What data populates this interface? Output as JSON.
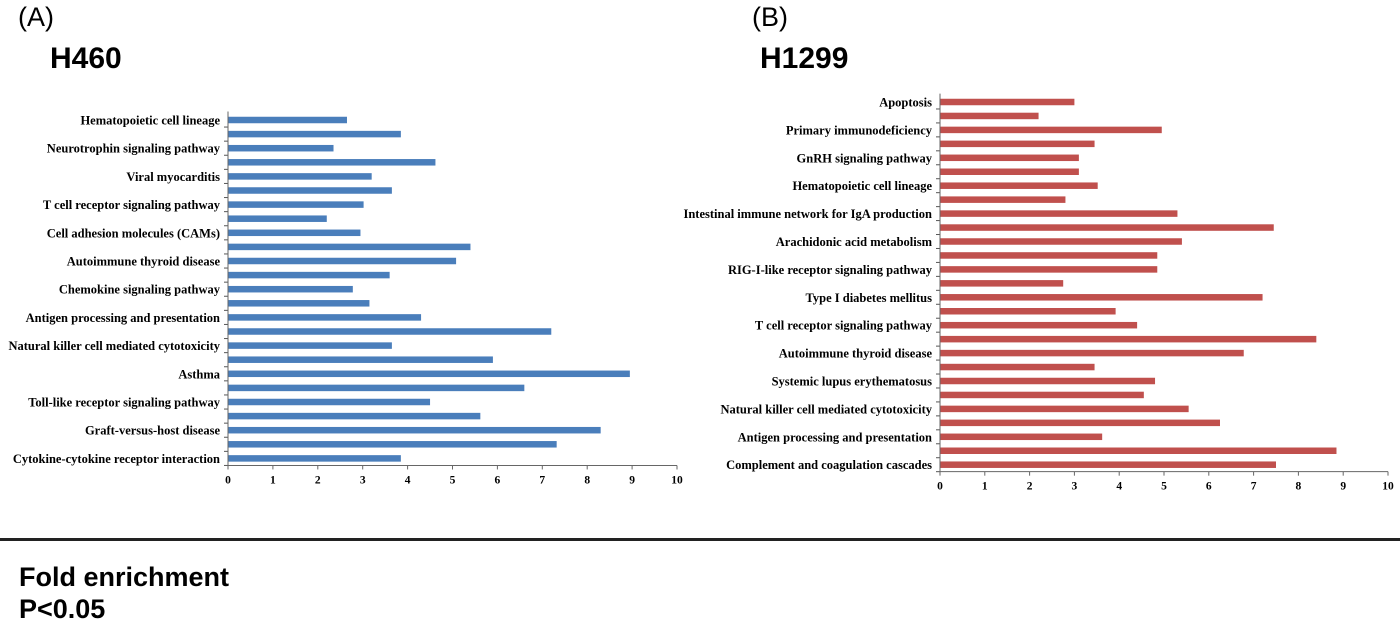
{
  "panels": [
    {
      "letter": "(A)",
      "title": "H460"
    },
    {
      "letter": "(B)",
      "title": "H1299"
    }
  ],
  "footer": {
    "line1": "Fold enrichment",
    "line2": "P<0.05"
  },
  "chart_data": [
    {
      "type": "bar",
      "orientation": "horizontal",
      "title": "H460",
      "xlim": [
        0,
        10
      ],
      "xticks": [
        0,
        1,
        2,
        3,
        4,
        5,
        6,
        7,
        8,
        9,
        10
      ],
      "grid": false,
      "color": "#4a7ebb",
      "categories": [
        "Hematopoietic cell lineage",
        "",
        "Neurotrophin signaling pathway",
        "",
        "Viral myocarditis",
        "",
        "T cell receptor signaling pathway",
        "",
        "Cell adhesion molecules (CAMs)",
        "",
        "Autoimmune thyroid disease",
        "",
        "Chemokine signaling pathway",
        "",
        "Antigen processing and presentation",
        "",
        "Natural killer cell mediated cytotoxicity",
        "",
        "Asthma",
        "",
        "Toll-like receptor signaling pathway",
        "",
        "Graft-versus-host disease",
        "",
        "Cytokine-cytokine receptor interaction"
      ],
      "values": [
        2.65,
        3.85,
        2.35,
        4.62,
        3.2,
        3.65,
        3.02,
        2.2,
        2.95,
        5.4,
        5.08,
        3.6,
        2.78,
        3.15,
        4.3,
        7.2,
        3.65,
        5.9,
        8.95,
        6.6,
        4.5,
        5.62,
        8.3,
        7.32,
        3.85
      ]
    },
    {
      "type": "bar",
      "orientation": "horizontal",
      "title": "H1299",
      "xlim": [
        0,
        10
      ],
      "xticks": [
        0,
        1,
        2,
        3,
        4,
        5,
        6,
        7,
        8,
        9,
        10
      ],
      "grid": false,
      "color": "#c0504d",
      "categories": [
        "Apoptosis",
        "",
        "Primary immunodeficiency",
        "",
        "GnRH signaling pathway",
        "",
        "Hematopoietic cell lineage",
        "",
        "Intestinal immune network for IgA production",
        "",
        "Arachidonic acid metabolism",
        "",
        "RIG-I-like receptor signaling pathway",
        "",
        "Type I diabetes mellitus",
        "",
        "T cell receptor signaling pathway",
        "",
        "Autoimmune thyroid disease",
        "",
        "Systemic lupus erythematosus",
        "",
        "Natural killer cell mediated cytotoxicity",
        "",
        "Antigen processing and presentation",
        "",
        "Complement and coagulation cascades"
      ],
      "values": [
        3.0,
        2.2,
        4.95,
        3.45,
        3.1,
        3.1,
        3.52,
        2.8,
        5.3,
        7.45,
        5.4,
        4.85,
        4.85,
        2.75,
        7.2,
        3.92,
        4.4,
        8.4,
        6.78,
        3.45,
        4.8,
        4.55,
        5.55,
        6.25,
        3.62,
        8.85,
        7.5
      ]
    }
  ]
}
